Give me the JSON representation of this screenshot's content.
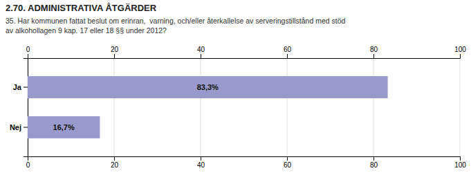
{
  "chart_data": {
    "type": "bar",
    "orientation": "horizontal",
    "title": "2.70. ADMINISTRATIVA ÅTGÄRDER",
    "subtitle": "35. Har kommunen fattat beslut om erinran,  varning, och/eller återkallelse av serveringstillstånd med stöd\nav alkohollagen 9 kap. 17 eller 18 §§ under 2012?",
    "categories": [
      "Ja",
      "Nej"
    ],
    "values": [
      83.3,
      16.7
    ],
    "value_labels": [
      "83,3%",
      "16,7%"
    ],
    "data_labels": true,
    "color": "#9999cc",
    "xlim": [
      0,
      100
    ],
    "xticks": [
      0,
      20,
      40,
      60,
      80,
      100
    ],
    "grid": true
  }
}
